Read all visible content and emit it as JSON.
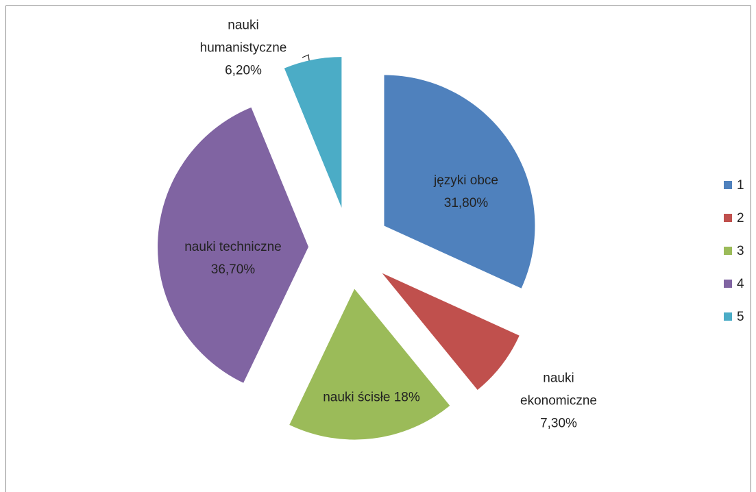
{
  "chart_data": {
    "type": "pie",
    "categories": [
      "1",
      "2",
      "3",
      "4",
      "5"
    ],
    "labels": [
      "języki obce",
      "nauki ekonomiczne",
      "nauki ścisłe",
      "nauki techniczne",
      "nauki humanistyczne"
    ],
    "values": [
      31.8,
      7.3,
      18,
      36.7,
      6.2
    ],
    "value_labels": [
      "31,80%",
      "7,30%",
      "18%",
      "36,70%",
      "6,20%"
    ],
    "colors": [
      "#4f81bd",
      "#c0504d",
      "#9bbb59",
      "#8064a2",
      "#4bacc6"
    ],
    "legend": "right"
  }
}
